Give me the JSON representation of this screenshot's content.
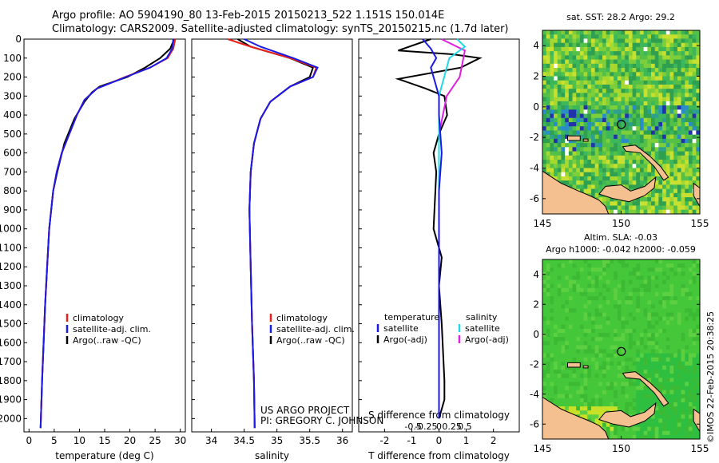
{
  "header": {
    "line1": "Argo profile: AO 5904190_80 13-Feb-2015 20150213_522 1.151S 150.014E",
    "line2": "Climatology: CARS2009. Satellite-adjusted climatology: synTS_20150215.nc (1.7d later)"
  },
  "credits": {
    "project": "US ARGO PROJECT",
    "pi": "PI: GREGORY C. JOHNSON",
    "watermark": "©IMOS 22-Feb-2015 20:38:25"
  },
  "colors": {
    "climatology": "#e8201a",
    "satellite": "#1a1ae8",
    "argo": "#000000",
    "sat_salinity": "#22d8e8",
    "argo_salinity": "#e020e0",
    "land": "#f5c090"
  },
  "chart_data": [
    {
      "id": "temperature",
      "type": "line",
      "xlabel": "temperature (deg C)",
      "ylabel": "",
      "xlim": [
        -1,
        31
      ],
      "ylim": [
        2070,
        0
      ],
      "xticks": [
        0,
        5,
        10,
        15,
        20,
        25,
        30
      ],
      "yticks": [
        0,
        100,
        200,
        300,
        400,
        500,
        600,
        700,
        800,
        900,
        1000,
        1100,
        1200,
        1300,
        1400,
        1500,
        1600,
        1700,
        1800,
        1900,
        2000
      ],
      "legend": [
        "climatology",
        "satellite-adj. clim.",
        "Argo(..raw -QC)"
      ],
      "series": [
        {
          "name": "climatology",
          "x": [
            29.0,
            28.6,
            27.5,
            24.0,
            19.0,
            13.5,
            11.0,
            9.5,
            8.0,
            6.5,
            5.5,
            4.8,
            4.0,
            3.6,
            3.2,
            2.9,
            2.6,
            2.3
          ],
          "depth": [
            0,
            50,
            100,
            150,
            200,
            260,
            320,
            400,
            500,
            600,
            700,
            800,
            1000,
            1200,
            1400,
            1600,
            1800,
            2050
          ]
        },
        {
          "name": "satellite-adj. clim.",
          "x": [
            28.6,
            28.4,
            27.3,
            24.0,
            19.2,
            13.5,
            11.0,
            9.5,
            8.0,
            6.5,
            5.5,
            4.8,
            4.0,
            3.6,
            3.2,
            2.9,
            2.6,
            2.3
          ],
          "depth": [
            0,
            50,
            100,
            150,
            200,
            260,
            320,
            400,
            500,
            600,
            700,
            800,
            1000,
            1200,
            1400,
            1600,
            1800,
            2050
          ]
        },
        {
          "name": "Argo(..raw -QC)",
          "x": [
            28.8,
            28.0,
            26.0,
            23.0,
            19.5,
            14.0,
            12.5,
            11.0,
            9.0,
            7.0,
            5.6,
            4.8,
            4.0,
            3.6,
            3.2,
            2.9,
            2.6,
            2.3
          ],
          "depth": [
            0,
            50,
            100,
            150,
            200,
            250,
            280,
            330,
            420,
            550,
            700,
            800,
            1000,
            1200,
            1400,
            1600,
            1800,
            2050
          ]
        }
      ]
    },
    {
      "id": "salinity",
      "type": "line",
      "xlabel": "salinity",
      "ylabel": "",
      "xlim": [
        33.7,
        36.15
      ],
      "ylim": [
        2070,
        0
      ],
      "xticks": [
        34,
        34.5,
        35,
        35.5,
        36
      ],
      "legend": [
        "climatology",
        "satellite-adj. clim.",
        "Argo(..raw -QC)"
      ],
      "series": [
        {
          "name": "climatology",
          "x": [
            34.25,
            34.6,
            35.2,
            35.6,
            35.55,
            35.2,
            34.9,
            34.75,
            34.65,
            34.6,
            34.58,
            34.6,
            34.62,
            34.65,
            34.66
          ],
          "depth": [
            0,
            40,
            100,
            150,
            200,
            250,
            330,
            420,
            550,
            700,
            900,
            1200,
            1500,
            1800,
            2050
          ]
        },
        {
          "name": "satellite-adj. clim.",
          "x": [
            34.5,
            34.75,
            35.25,
            35.62,
            35.55,
            35.2,
            34.9,
            34.75,
            34.65,
            34.6,
            34.58,
            34.6,
            34.62,
            34.65,
            34.66
          ],
          "depth": [
            0,
            40,
            100,
            150,
            200,
            250,
            330,
            420,
            550,
            700,
            900,
            1200,
            1500,
            1800,
            2050
          ]
        },
        {
          "name": "Argo(..raw -QC)",
          "x": [
            34.4,
            34.6,
            35.2,
            35.55,
            35.5,
            35.2,
            34.9,
            34.75,
            34.65,
            34.6,
            34.58,
            34.6,
            34.62,
            34.65,
            34.66
          ],
          "depth": [
            0,
            40,
            100,
            150,
            200,
            250,
            330,
            420,
            550,
            700,
            900,
            1200,
            1500,
            1800,
            2050
          ]
        }
      ]
    },
    {
      "id": "differences",
      "type": "line",
      "xlabel": "T difference from climatology",
      "top_xlabel": "S difference from climatology",
      "ylabel": "",
      "xlim": [
        -2.95,
        2.95
      ],
      "ylim": [
        2070,
        0
      ],
      "xticks": [
        -2,
        -1,
        0,
        1,
        2
      ],
      "sxticks": [
        -0.5,
        -0.25,
        0,
        0.25,
        0.5
      ],
      "sxtick_labels": [
        "-0.5",
        "-0.25",
        "0",
        "0.25",
        "0.5"
      ],
      "legend_temperature_title": "temperature",
      "legend_salinity_title": "salinity",
      "legend": [
        "satellite",
        "Argo(-adj)",
        "satellite",
        "Argo(-adj)"
      ],
      "series": [
        {
          "name": "T satellite",
          "x": [
            -0.6,
            -0.3,
            -0.1,
            -0.3,
            -0.2,
            0.0,
            0.0,
            0.1,
            0.0,
            0.0,
            0.0,
            0.0
          ],
          "depth": [
            0,
            50,
            100,
            150,
            200,
            300,
            400,
            600,
            800,
            1200,
            1600,
            2000
          ]
        },
        {
          "name": "T Argo(-adj)",
          "x": [
            -0.3,
            -1.5,
            0.5,
            1.5,
            0.8,
            -1.5,
            -0.5,
            0.2,
            0.3,
            0.0,
            -0.2,
            -0.1,
            -0.2,
            0.1,
            0.0,
            0.1,
            0.2,
            0.2,
            0.0
          ],
          "depth": [
            0,
            60,
            80,
            100,
            150,
            210,
            260,
            300,
            400,
            500,
            600,
            700,
            1000,
            1150,
            1300,
            1500,
            1800,
            1900,
            2000
          ]
        },
        {
          "name": "S satellite",
          "x": [
            0.35,
            0.5,
            0.2,
            0.15,
            0.0,
            0.0,
            0.0
          ],
          "depth": [
            0,
            40,
            100,
            150,
            300,
            800,
            2000
          ]
        },
        {
          "name": "S Argo(-adj)",
          "x": [
            0.05,
            0.5,
            0.4,
            0.15,
            0.0,
            0.0
          ],
          "depth": [
            0,
            60,
            200,
            300,
            500,
            2000
          ]
        }
      ]
    },
    {
      "id": "sst_map",
      "type": "heatmap",
      "title": "sat. SST: 28.2 Argo: 29.2",
      "xlim": [
        145,
        155
      ],
      "ylim": [
        -7,
        5
      ],
      "xticks": [
        145,
        150,
        155
      ],
      "yticks": [
        4,
        2,
        0,
        -2,
        -4,
        -6
      ],
      "profile_position": [
        150.014,
        -1.151
      ]
    },
    {
      "id": "sla_map",
      "type": "heatmap",
      "title_line1": "Altim. SLA: -0.03",
      "title_line2": "Argo h1000: -0.042 h2000: -0.059",
      "xlim": [
        145,
        155
      ],
      "ylim": [
        -7,
        5
      ],
      "xticks": [
        145,
        150,
        155
      ],
      "yticks": [
        4,
        2,
        0,
        -2,
        -4,
        -6
      ],
      "profile_position": [
        150.014,
        -1.151
      ]
    }
  ]
}
